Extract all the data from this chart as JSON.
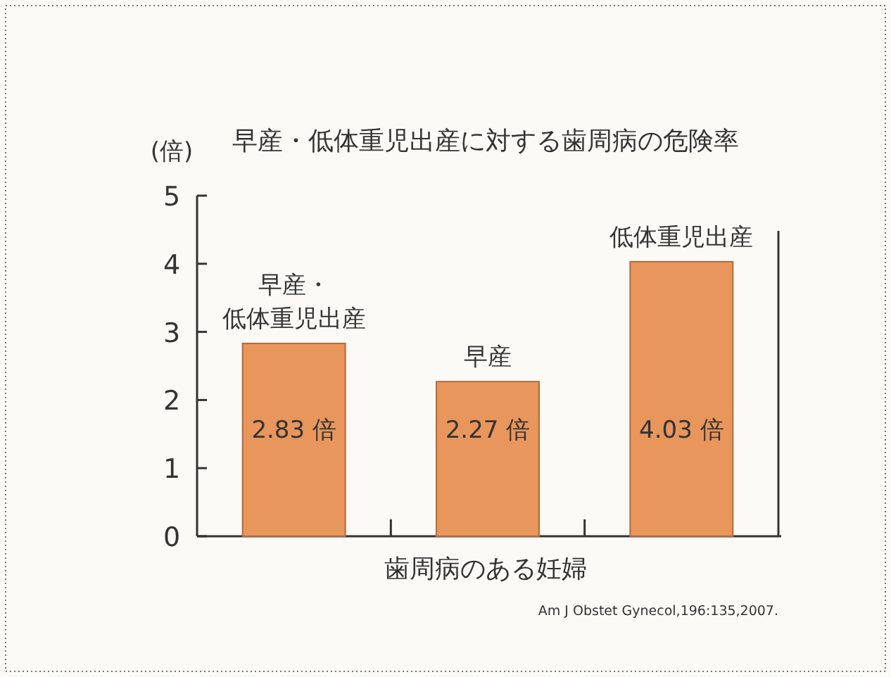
{
  "chart_data": {
    "type": "bar",
    "title": "早産・低体重児出産に対する歯周病の危険率",
    "ylabel": "(倍)",
    "xlabel": "歯周病のある妊婦",
    "categories": [
      "早産・低体重児出産",
      "早産",
      "低体重児出産"
    ],
    "values": [
      2.83,
      2.27,
      4.03
    ],
    "value_labels": [
      "2.83 倍",
      "2.27 倍",
      "4.03 倍"
    ],
    "color": "#e8965c",
    "ylim": [
      0,
      5
    ],
    "yticks": [
      0,
      1,
      2,
      3,
      4,
      5
    ],
    "annotations": [
      "Am J Obstet Gynecol,196:135,2007."
    ]
  }
}
